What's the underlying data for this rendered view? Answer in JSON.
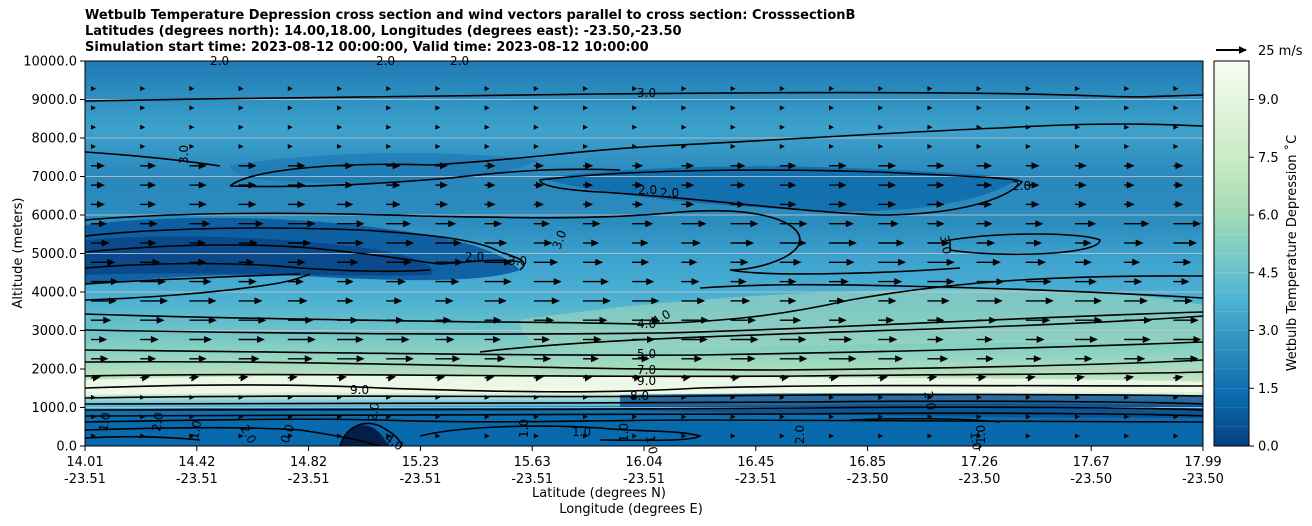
{
  "chart_data": {
    "type": "contour",
    "title_lines": [
      "Wetbulb Temperature Depression cross section and wind vectors parallel to cross section: CrosssectionB",
      "Latitudes (degrees north): 14.00,18.00, Longitudes (degrees east): -23.50,-23.50",
      "Simulation start time: 2023-08-12 00:00:00, Valid time: 2023-08-12 10:00:00"
    ],
    "ylabel": "Altitude (meters)",
    "xlabel": "Latitude (degrees N)",
    "xlabel2": "Longitude (degrees E)",
    "ylim": [
      0,
      10000
    ],
    "xlim": [
      14.01,
      17.99
    ],
    "y_ticks": [
      "0.0",
      "1000.0",
      "2000.0",
      "3000.0",
      "4000.0",
      "5000.0",
      "6000.0",
      "7000.0",
      "8000.0",
      "9000.0",
      "10000.0"
    ],
    "x_ticks": [
      {
        "lat": "14.01",
        "lon": "-23.51"
      },
      {
        "lat": "14.42",
        "lon": "-23.51"
      },
      {
        "lat": "14.82",
        "lon": "-23.51"
      },
      {
        "lat": "15.23",
        "lon": "-23.51"
      },
      {
        "lat": "15.63",
        "lon": "-23.51"
      },
      {
        "lat": "16.04",
        "lon": "-23.51"
      },
      {
        "lat": "16.45",
        "lon": "-23.51"
      },
      {
        "lat": "16.85",
        "lon": "-23.50"
      },
      {
        "lat": "17.26",
        "lon": "-23.50"
      },
      {
        "lat": "17.67",
        "lon": "-23.50"
      },
      {
        "lat": "17.99",
        "lon": "-23.50"
      }
    ],
    "colorbar": {
      "label": "Wetbulb Temperature Depression ˚C",
      "range": [
        0,
        10
      ],
      "ticks": [
        "0.0",
        "1.5",
        "3.0",
        "4.5",
        "6.0",
        "7.5",
        "9.0"
      ],
      "colormap": "GnBu_r"
    },
    "quiver_key": {
      "label": "25 m/s"
    },
    "contour_labels": [
      "2.0",
      "2.0",
      "2.0",
      "3.0",
      "3.0",
      "2.0",
      "2.0",
      "3.0",
      "2.0",
      "3.0",
      "3.0",
      "2.0",
      "4.0",
      "4.0",
      "5.0",
      "7.0",
      "9.0",
      "9.0",
      "8.0",
      "1.0",
      "2.0",
      "1.0",
      "2.0",
      "4.0",
      "0.0",
      "1.0",
      "1.0",
      "1.0",
      "2.0",
      "1.0",
      "1.0",
      "2.0",
      "2.0",
      "1.0"
    ],
    "grid": true
  }
}
